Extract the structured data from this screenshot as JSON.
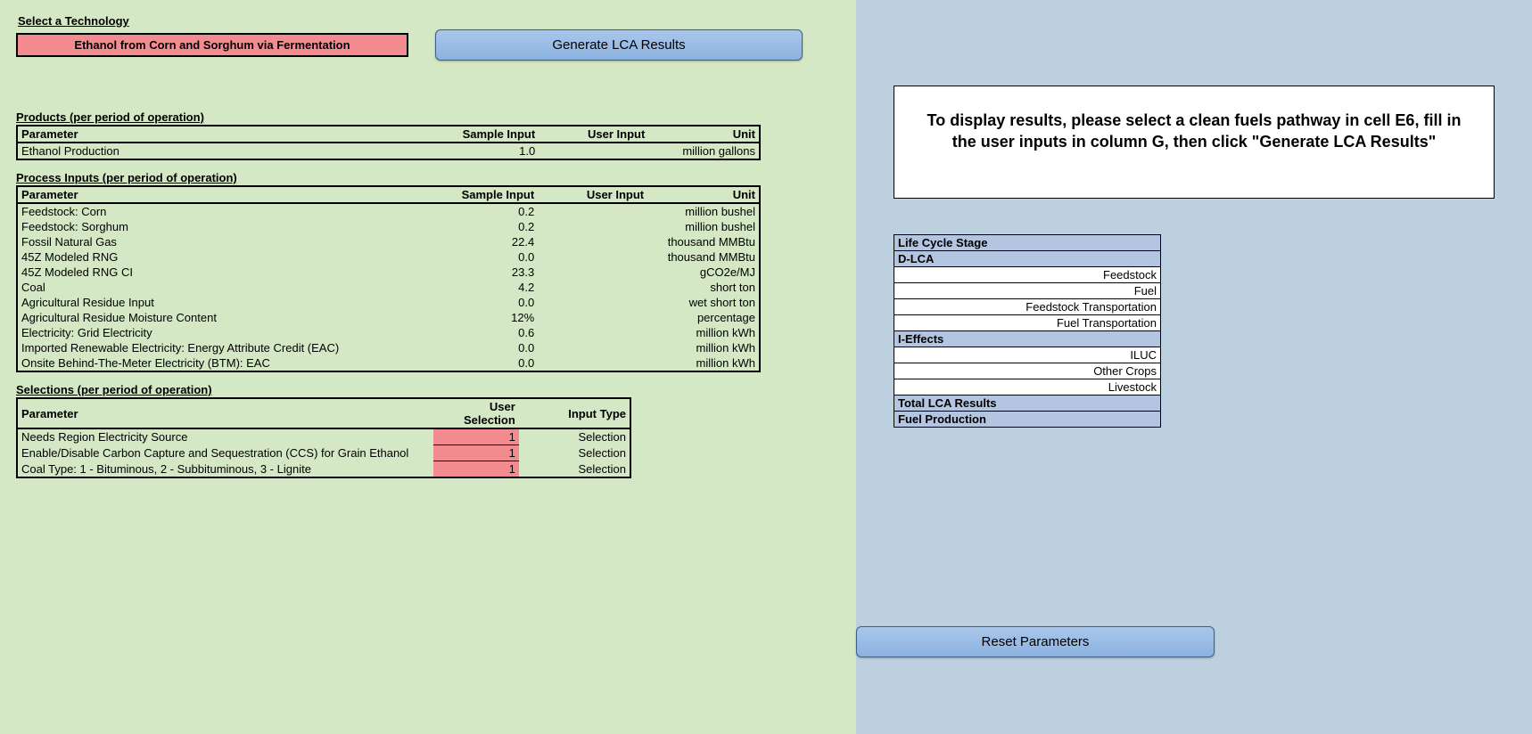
{
  "left": {
    "select_tech_label": "Select a Technology",
    "technology": "Ethanol from Corn and Sorghum via Fermentation",
    "generate_btn": "Generate LCA Results",
    "products_label": "Products (per period of operation)",
    "products_headers": {
      "c1": "Parameter",
      "c2": "Sample Input",
      "c3": "User Input",
      "c4": "Unit"
    },
    "products_rows": [
      {
        "param": "Ethanol Production",
        "sample": "1.0",
        "user": "",
        "unit": "million gallons"
      }
    ],
    "process_label": "Process Inputs (per period of operation)",
    "process_headers": {
      "c1": "Parameter",
      "c2": "Sample Input",
      "c3": "User Input",
      "c4": "Unit"
    },
    "process_rows": [
      {
        "param": "Feedstock: Corn",
        "sample": "0.2",
        "user": "",
        "unit": "million bushel"
      },
      {
        "param": "Feedstock: Sorghum",
        "sample": "0.2",
        "user": "",
        "unit": "million bushel"
      },
      {
        "param": "Fossil Natural Gas",
        "sample": "22.4",
        "user": "",
        "unit": "thousand MMBtu"
      },
      {
        "param": "45Z Modeled RNG",
        "sample": "0.0",
        "user": "",
        "unit": "thousand MMBtu"
      },
      {
        "param": "45Z Modeled RNG CI",
        "sample": "23.3",
        "user": "",
        "unit": "gCO2e/MJ"
      },
      {
        "param": "Coal",
        "sample": "4.2",
        "user": "",
        "unit": "short ton"
      },
      {
        "param": "Agricultural Residue Input",
        "sample": "0.0",
        "user": "",
        "unit": "wet short ton"
      },
      {
        "param": "Agricultural Residue Moisture Content",
        "sample": "12%",
        "user": "",
        "unit": "percentage"
      },
      {
        "param": "Electricity: Grid Electricity",
        "sample": "0.6",
        "user": "",
        "unit": "million kWh"
      },
      {
        "param": "Imported Renewable Electricity: Energy Attribute Credit (EAC)",
        "sample": "0.0",
        "user": "",
        "unit": "million kWh"
      },
      {
        "param": "Onsite Behind-The-Meter Electricity (BTM): EAC",
        "sample": "0.0",
        "user": "",
        "unit": "million kWh"
      }
    ],
    "selections_label": "Selections (per period of operation)",
    "selections_headers": {
      "c1": "Parameter",
      "c2": "User Selection",
      "c3": "Input Type"
    },
    "selections_rows": [
      {
        "param": "Needs Region Electricity Source",
        "val": "1",
        "type": "Selection"
      },
      {
        "param": "Enable/Disable Carbon Capture and Sequestration (CCS) for Grain Ethanol",
        "val": "1",
        "type": "Selection"
      },
      {
        "param": "Coal Type: 1 - Bituminous, 2 - Subbituminous, 3 - Lignite",
        "val": "1",
        "type": "Selection"
      }
    ]
  },
  "right": {
    "instructions": "To display results, please select a clean fuels pathway in cell E6, fill in the user inputs in column G, then click \"Generate LCA Results\"",
    "lcs_title": "Life Cycle Stage",
    "dlca_label": "D-LCA",
    "dlca_rows": [
      "Feedstock",
      "Fuel",
      "Feedstock Transportation",
      "Fuel Transportation"
    ],
    "ieffects_label": "I-Effects",
    "ieffects_rows": [
      "ILUC",
      "Other Crops",
      "Livestock"
    ],
    "total_label": "Total LCA Results",
    "fuelprod_label": "Fuel Production",
    "reset_btn": "Reset Parameters"
  },
  "colors": {
    "left_bg": "#d4e8c5",
    "right_bg": "#bcd0e0",
    "highlight": "#f38c91",
    "button_top": "#aac7ea",
    "button_bottom": "#8bb2e0",
    "lcs_header_bg": "#b3c5e0"
  }
}
